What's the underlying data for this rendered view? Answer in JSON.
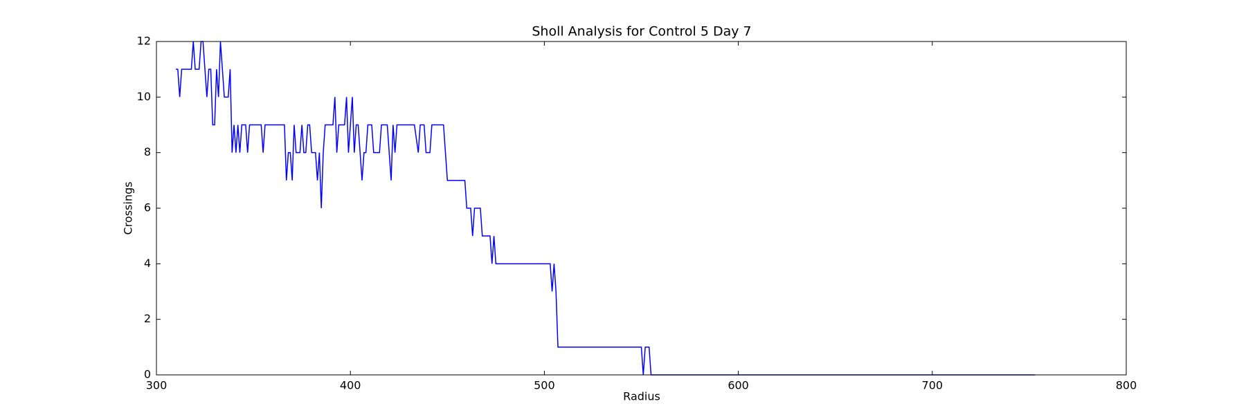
{
  "chart_data": {
    "type": "line",
    "title": "Sholl Analysis for Control 5 Day 7",
    "x_label": "Radius",
    "y_label": "Crossings",
    "color": "#0000ff",
    "x": [
      310,
      311,
      312,
      313,
      318,
      319,
      320,
      322,
      323,
      324,
      326,
      327,
      328,
      329,
      330,
      331,
      332,
      333,
      335,
      337,
      338,
      339,
      340,
      341,
      342,
      343,
      344,
      346,
      347,
      348,
      354,
      355,
      356,
      366,
      367,
      368,
      369,
      370,
      371,
      372,
      374,
      375,
      376,
      377,
      378,
      379,
      380,
      382,
      383,
      384,
      385,
      386,
      387,
      391,
      392,
      393,
      394,
      397,
      398,
      399,
      401,
      402,
      403,
      404,
      406,
      407,
      408,
      409,
      411,
      412,
      415,
      416,
      419,
      421,
      422,
      423,
      424,
      433,
      435,
      436,
      438,
      439,
      441,
      442,
      448,
      450,
      459,
      460,
      462,
      463,
      464,
      467,
      468,
      472,
      473,
      474,
      475,
      503,
      504,
      505,
      506,
      507,
      550,
      551,
      552,
      554,
      555,
      753
    ],
    "values": [
      11,
      11,
      10,
      11,
      11,
      12,
      11,
      11,
      12,
      12,
      10,
      11,
      11,
      9,
      9,
      11,
      10,
      12,
      10,
      10,
      11,
      8,
      9,
      8,
      9,
      8,
      9,
      9,
      8,
      9,
      9,
      8,
      9,
      9,
      7,
      8,
      8,
      7,
      9,
      8,
      8,
      9,
      8,
      8,
      9,
      9,
      8,
      8,
      7,
      8,
      6,
      8,
      9,
      9,
      10,
      8,
      9,
      9,
      10,
      8,
      10,
      8,
      9,
      9,
      7,
      8,
      8,
      9,
      9,
      8,
      8,
      9,
      9,
      7,
      9,
      8,
      9,
      9,
      8,
      9,
      9,
      8,
      8,
      9,
      9,
      7,
      7,
      6,
      6,
      5,
      6,
      6,
      5,
      5,
      4,
      5,
      4,
      4,
      3,
      4,
      3,
      1,
      1,
      0,
      1,
      1,
      0,
      0
    ],
    "xlim": [
      300,
      800
    ],
    "xticks": [
      300,
      400,
      500,
      600,
      700,
      800
    ],
    "ylim": [
      0,
      12
    ],
    "yticks": [
      0,
      2,
      4,
      6,
      8,
      10,
      12
    ]
  }
}
